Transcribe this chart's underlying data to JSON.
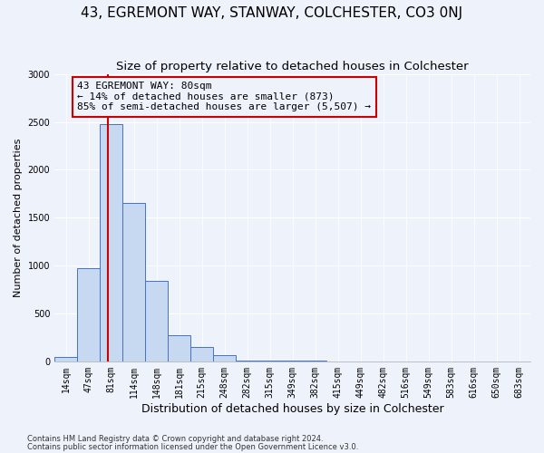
{
  "title": "43, EGREMONT WAY, STANWAY, COLCHESTER, CO3 0NJ",
  "subtitle": "Size of property relative to detached houses in Colchester",
  "xlabel": "Distribution of detached houses by size in Colchester",
  "ylabel": "Number of detached properties",
  "footnote1": "Contains HM Land Registry data © Crown copyright and database right 2024.",
  "footnote2": "Contains public sector information licensed under the Open Government Licence v3.0.",
  "categories": [
    "14sqm",
    "47sqm",
    "81sqm",
    "114sqm",
    "148sqm",
    "181sqm",
    "215sqm",
    "248sqm",
    "282sqm",
    "315sqm",
    "349sqm",
    "382sqm",
    "415sqm",
    "449sqm",
    "482sqm",
    "516sqm",
    "549sqm",
    "583sqm",
    "616sqm",
    "650sqm",
    "683sqm"
  ],
  "values": [
    50,
    970,
    2480,
    1650,
    840,
    270,
    150,
    65,
    10,
    10,
    5,
    5,
    0,
    0,
    0,
    0,
    0,
    0,
    0,
    0,
    0
  ],
  "bar_color": "#c6d9f1",
  "bar_edge_color": "#4472c4",
  "property_line_x": 1.85,
  "annotation_text1": "43 EGREMONT WAY: 80sqm",
  "annotation_text2": "← 14% of detached houses are smaller (873)",
  "annotation_text3": "85% of semi-detached houses are larger (5,507) →",
  "annotation_box_color": "#cc0000",
  "ylim": [
    0,
    3000
  ],
  "yticks": [
    0,
    500,
    1000,
    1500,
    2000,
    2500,
    3000
  ],
  "title_fontsize": 11,
  "subtitle_fontsize": 9.5,
  "ylabel_fontsize": 8,
  "xlabel_fontsize": 9,
  "tick_fontsize": 7,
  "annotation_fontsize": 8,
  "background_color": "#eef2fa",
  "grid_color": "#ffffff"
}
